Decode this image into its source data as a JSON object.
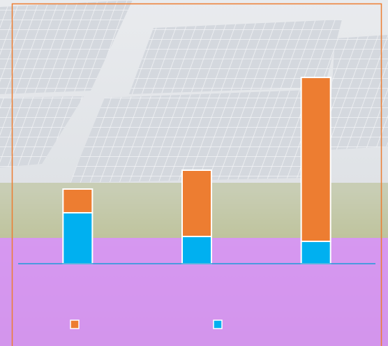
{
  "chart_data": {
    "type": "bar",
    "stacked": true,
    "categories": [
      null,
      null,
      null
    ],
    "series": [
      {
        "color": "#00b0f0",
        "values": [
          73,
          39,
          32
        ]
      },
      {
        "color": "#ed7d31",
        "values": [
          34,
          95,
          235
        ]
      }
    ],
    "ylim": [
      0,
      280
    ],
    "baseline_color": "#1e9bd7"
  }
}
